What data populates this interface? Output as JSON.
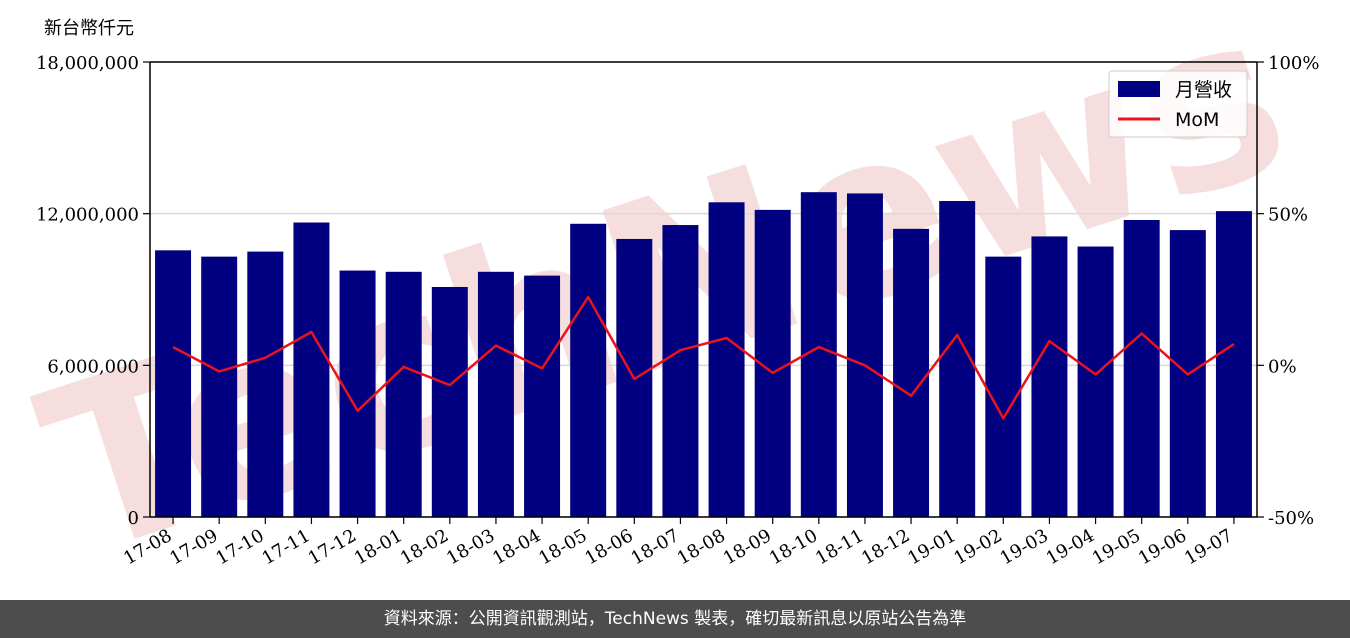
{
  "header": {
    "unit_label": "新台幣仟元"
  },
  "footer": {
    "source_text": "資料來源：公開資訊觀測站，TechNews 製表，確切最新訊息以原站公告為準"
  },
  "watermark": {
    "text": "TechNews",
    "color": "#f6dede"
  },
  "colors": {
    "bar": "#000080",
    "line": "#e8141d",
    "grid": "#d9d9d9",
    "footer_bg": "#4d4d4d"
  },
  "chart_data": {
    "type": "bar",
    "categories": [
      "17-08",
      "17-09",
      "17-10",
      "17-11",
      "17-12",
      "18-01",
      "18-02",
      "18-03",
      "18-04",
      "18-05",
      "18-06",
      "18-07",
      "18-08",
      "18-09",
      "18-10",
      "18-11",
      "18-12",
      "19-01",
      "19-02",
      "19-03",
      "19-04",
      "19-05",
      "19-06",
      "19-07"
    ],
    "series": [
      {
        "name": "月營收",
        "type": "bar",
        "axis": "left",
        "values": [
          10550000,
          10300000,
          10500000,
          11650000,
          9750000,
          9700000,
          9100000,
          9700000,
          9550000,
          11600000,
          11000000,
          11550000,
          12450000,
          12150000,
          12850000,
          12800000,
          11400000,
          12500000,
          10300000,
          11100000,
          10700000,
          11750000,
          11350000,
          12100000
        ]
      },
      {
        "name": "MoM",
        "type": "line",
        "axis": "right",
        "values": [
          6,
          -2,
          2.5,
          11,
          -15,
          -0.5,
          -6.5,
          6.5,
          -1,
          22.5,
          -4.5,
          5,
          9,
          -2.5,
          6,
          0,
          -10,
          10,
          -17.5,
          8,
          -3,
          10.5,
          -3,
          7
        ]
      }
    ],
    "y_left": {
      "min": 0,
      "max": 18000000,
      "ticks": [
        0,
        6000000,
        12000000,
        18000000
      ],
      "tick_labels": [
        "0",
        "6,000,000",
        "12,000,000",
        "18,000,000"
      ]
    },
    "y_right": {
      "min": -50,
      "max": 100,
      "ticks": [
        -50,
        0,
        50,
        100
      ],
      "tick_labels": [
        "-50%",
        "0%",
        "50%",
        "100%"
      ]
    },
    "grid": true,
    "legend": "top-right"
  }
}
